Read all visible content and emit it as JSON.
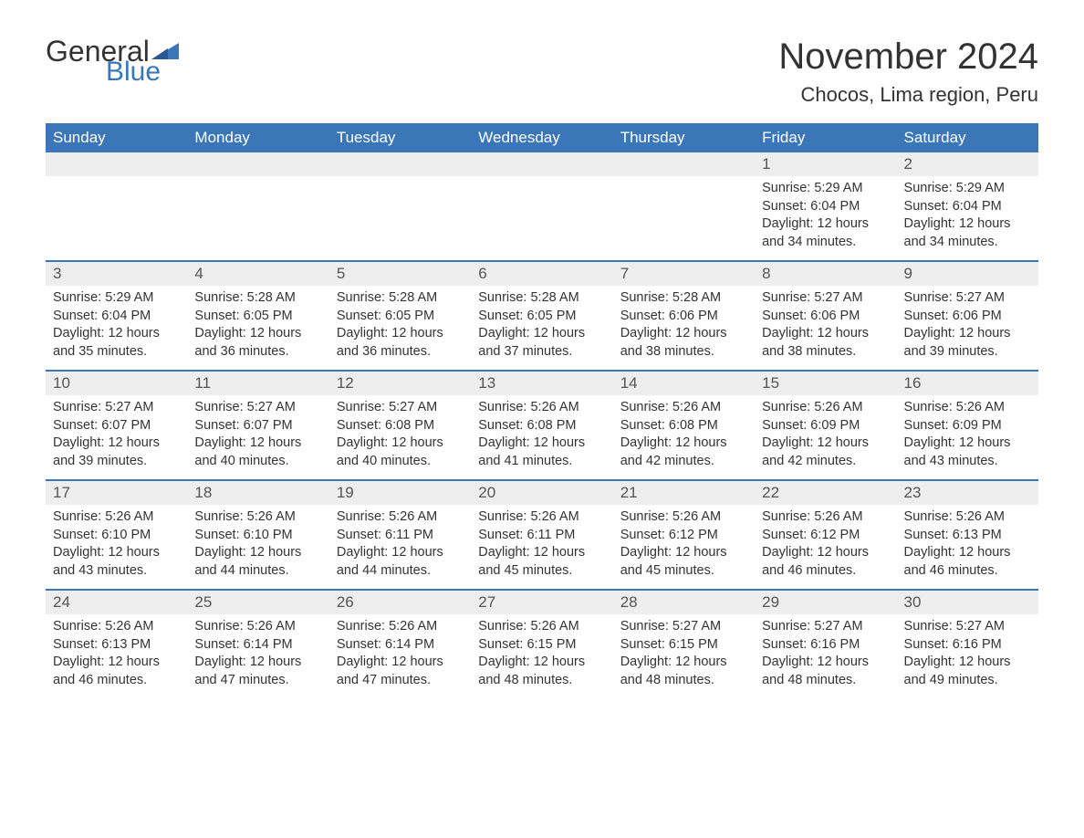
{
  "brand": {
    "part1": "General",
    "part2": "Blue",
    "accent_color": "#3a76b8"
  },
  "title": "November 2024",
  "location": "Chocos, Lima region, Peru",
  "weekdays": [
    "Sunday",
    "Monday",
    "Tuesday",
    "Wednesday",
    "Thursday",
    "Friday",
    "Saturday"
  ],
  "colors": {
    "header_bg": "#3a76b8",
    "header_text": "#ffffff",
    "band_bg": "#eeeeee",
    "border": "#3a76b8",
    "text": "#333333",
    "page_bg": "#ffffff"
  },
  "typography": {
    "title_fontsize": 40,
    "location_fontsize": 22,
    "weekday_fontsize": 17,
    "daynum_fontsize": 17,
    "body_fontsize": 14.5
  },
  "weeks": [
    [
      null,
      null,
      null,
      null,
      null,
      {
        "n": "1",
        "sunrise": "Sunrise: 5:29 AM",
        "sunset": "Sunset: 6:04 PM",
        "daylight": "Daylight: 12 hours and 34 minutes."
      },
      {
        "n": "2",
        "sunrise": "Sunrise: 5:29 AM",
        "sunset": "Sunset: 6:04 PM",
        "daylight": "Daylight: 12 hours and 34 minutes."
      }
    ],
    [
      {
        "n": "3",
        "sunrise": "Sunrise: 5:29 AM",
        "sunset": "Sunset: 6:04 PM",
        "daylight": "Daylight: 12 hours and 35 minutes."
      },
      {
        "n": "4",
        "sunrise": "Sunrise: 5:28 AM",
        "sunset": "Sunset: 6:05 PM",
        "daylight": "Daylight: 12 hours and 36 minutes."
      },
      {
        "n": "5",
        "sunrise": "Sunrise: 5:28 AM",
        "sunset": "Sunset: 6:05 PM",
        "daylight": "Daylight: 12 hours and 36 minutes."
      },
      {
        "n": "6",
        "sunrise": "Sunrise: 5:28 AM",
        "sunset": "Sunset: 6:05 PM",
        "daylight": "Daylight: 12 hours and 37 minutes."
      },
      {
        "n": "7",
        "sunrise": "Sunrise: 5:28 AM",
        "sunset": "Sunset: 6:06 PM",
        "daylight": "Daylight: 12 hours and 38 minutes."
      },
      {
        "n": "8",
        "sunrise": "Sunrise: 5:27 AM",
        "sunset": "Sunset: 6:06 PM",
        "daylight": "Daylight: 12 hours and 38 minutes."
      },
      {
        "n": "9",
        "sunrise": "Sunrise: 5:27 AM",
        "sunset": "Sunset: 6:06 PM",
        "daylight": "Daylight: 12 hours and 39 minutes."
      }
    ],
    [
      {
        "n": "10",
        "sunrise": "Sunrise: 5:27 AM",
        "sunset": "Sunset: 6:07 PM",
        "daylight": "Daylight: 12 hours and 39 minutes."
      },
      {
        "n": "11",
        "sunrise": "Sunrise: 5:27 AM",
        "sunset": "Sunset: 6:07 PM",
        "daylight": "Daylight: 12 hours and 40 minutes."
      },
      {
        "n": "12",
        "sunrise": "Sunrise: 5:27 AM",
        "sunset": "Sunset: 6:08 PM",
        "daylight": "Daylight: 12 hours and 40 minutes."
      },
      {
        "n": "13",
        "sunrise": "Sunrise: 5:26 AM",
        "sunset": "Sunset: 6:08 PM",
        "daylight": "Daylight: 12 hours and 41 minutes."
      },
      {
        "n": "14",
        "sunrise": "Sunrise: 5:26 AM",
        "sunset": "Sunset: 6:08 PM",
        "daylight": "Daylight: 12 hours and 42 minutes."
      },
      {
        "n": "15",
        "sunrise": "Sunrise: 5:26 AM",
        "sunset": "Sunset: 6:09 PM",
        "daylight": "Daylight: 12 hours and 42 minutes."
      },
      {
        "n": "16",
        "sunrise": "Sunrise: 5:26 AM",
        "sunset": "Sunset: 6:09 PM",
        "daylight": "Daylight: 12 hours and 43 minutes."
      }
    ],
    [
      {
        "n": "17",
        "sunrise": "Sunrise: 5:26 AM",
        "sunset": "Sunset: 6:10 PM",
        "daylight": "Daylight: 12 hours and 43 minutes."
      },
      {
        "n": "18",
        "sunrise": "Sunrise: 5:26 AM",
        "sunset": "Sunset: 6:10 PM",
        "daylight": "Daylight: 12 hours and 44 minutes."
      },
      {
        "n": "19",
        "sunrise": "Sunrise: 5:26 AM",
        "sunset": "Sunset: 6:11 PM",
        "daylight": "Daylight: 12 hours and 44 minutes."
      },
      {
        "n": "20",
        "sunrise": "Sunrise: 5:26 AM",
        "sunset": "Sunset: 6:11 PM",
        "daylight": "Daylight: 12 hours and 45 minutes."
      },
      {
        "n": "21",
        "sunrise": "Sunrise: 5:26 AM",
        "sunset": "Sunset: 6:12 PM",
        "daylight": "Daylight: 12 hours and 45 minutes."
      },
      {
        "n": "22",
        "sunrise": "Sunrise: 5:26 AM",
        "sunset": "Sunset: 6:12 PM",
        "daylight": "Daylight: 12 hours and 46 minutes."
      },
      {
        "n": "23",
        "sunrise": "Sunrise: 5:26 AM",
        "sunset": "Sunset: 6:13 PM",
        "daylight": "Daylight: 12 hours and 46 minutes."
      }
    ],
    [
      {
        "n": "24",
        "sunrise": "Sunrise: 5:26 AM",
        "sunset": "Sunset: 6:13 PM",
        "daylight": "Daylight: 12 hours and 46 minutes."
      },
      {
        "n": "25",
        "sunrise": "Sunrise: 5:26 AM",
        "sunset": "Sunset: 6:14 PM",
        "daylight": "Daylight: 12 hours and 47 minutes."
      },
      {
        "n": "26",
        "sunrise": "Sunrise: 5:26 AM",
        "sunset": "Sunset: 6:14 PM",
        "daylight": "Daylight: 12 hours and 47 minutes."
      },
      {
        "n": "27",
        "sunrise": "Sunrise: 5:26 AM",
        "sunset": "Sunset: 6:15 PM",
        "daylight": "Daylight: 12 hours and 48 minutes."
      },
      {
        "n": "28",
        "sunrise": "Sunrise: 5:27 AM",
        "sunset": "Sunset: 6:15 PM",
        "daylight": "Daylight: 12 hours and 48 minutes."
      },
      {
        "n": "29",
        "sunrise": "Sunrise: 5:27 AM",
        "sunset": "Sunset: 6:16 PM",
        "daylight": "Daylight: 12 hours and 48 minutes."
      },
      {
        "n": "30",
        "sunrise": "Sunrise: 5:27 AM",
        "sunset": "Sunset: 6:16 PM",
        "daylight": "Daylight: 12 hours and 49 minutes."
      }
    ]
  ]
}
